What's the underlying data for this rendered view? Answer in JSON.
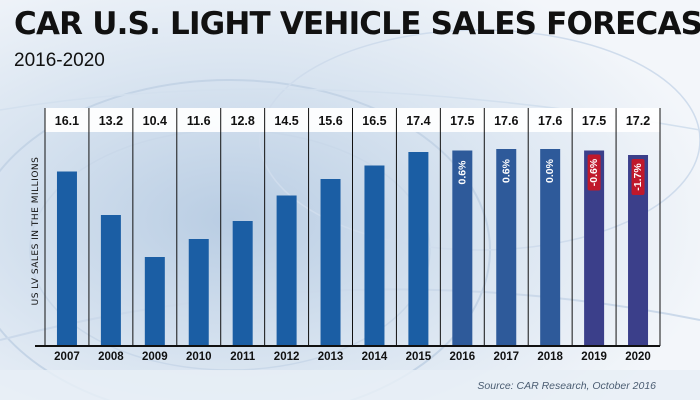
{
  "header": {
    "title": "CAR U.S. LIGHT VEHICLE SALES FORECAST",
    "subtitle": "2016-2020"
  },
  "footer": {
    "source": "Source: CAR Research, October 2016"
  },
  "colors": {
    "actual_bar": "#1b5ea4",
    "forecast_bar": "#2e5a9a",
    "forecast_bar_late": "#3b3f8a",
    "negative_label_bg": "#c0182b"
  },
  "chart_data": {
    "type": "bar",
    "title": "CAR U.S. LIGHT VEHICLE SALES FORECAST",
    "subtitle": "2016-2020",
    "ylabel": "US LV SALES IN THE MILLIONS",
    "xlabel": "",
    "categories": [
      "2007",
      "2008",
      "2009",
      "2010",
      "2011",
      "2012",
      "2013",
      "2014",
      "2015",
      "2016",
      "2017",
      "2018",
      "2019",
      "2020"
    ],
    "values": [
      16.1,
      13.2,
      10.4,
      11.6,
      12.8,
      14.5,
      15.6,
      16.5,
      17.4,
      17.5,
      17.6,
      17.6,
      17.5,
      17.2
    ],
    "value_labels": [
      "16.1",
      "13.2",
      "10.4",
      "11.6",
      "12.8",
      "14.5",
      "15.6",
      "16.5",
      "17.4",
      "17.5",
      "17.6",
      "17.6",
      "17.5",
      "17.2"
    ],
    "growth_labels": [
      null,
      null,
      null,
      null,
      null,
      null,
      null,
      null,
      null,
      "0.6%",
      "0.6%",
      "0.0%",
      "-0.6%",
      "-1.7%"
    ],
    "forecast_start_index": 9,
    "ylim": [
      5,
      18
    ],
    "grid": false,
    "source": "Source: CAR Research, October 2016"
  }
}
